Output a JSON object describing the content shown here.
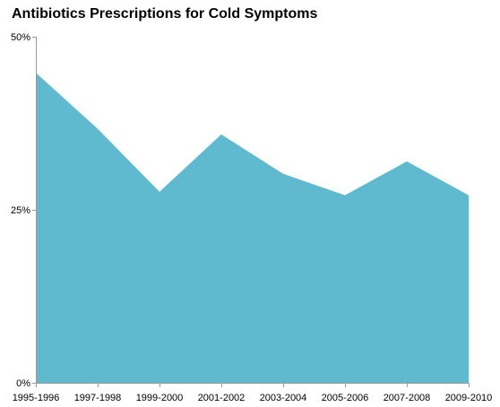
{
  "chart_data": {
    "type": "area",
    "title": "Antibiotics Prescriptions for Cold Symptoms",
    "xlabel": "",
    "ylabel": "",
    "categories": [
      "1995-1996",
      "1997-1998",
      "1999-2000",
      "2001-2002",
      "2003-2004",
      "2005-2006",
      "2007-2008",
      "2009-2010"
    ],
    "series": [
      {
        "values": [
          44.8,
          36.7,
          27.6,
          35.9,
          30.2,
          27.1,
          32.0,
          27.1
        ]
      }
    ],
    "ylim": [
      0,
      50
    ],
    "yticks": [
      "0%",
      "25%",
      "50%"
    ],
    "ytick_values": [
      0,
      25,
      50
    ],
    "grid": false,
    "legend": "none",
    "colors": {
      "area_fill": "#5fbad0",
      "axis": "#9a9a9a",
      "text": "#000000"
    }
  }
}
